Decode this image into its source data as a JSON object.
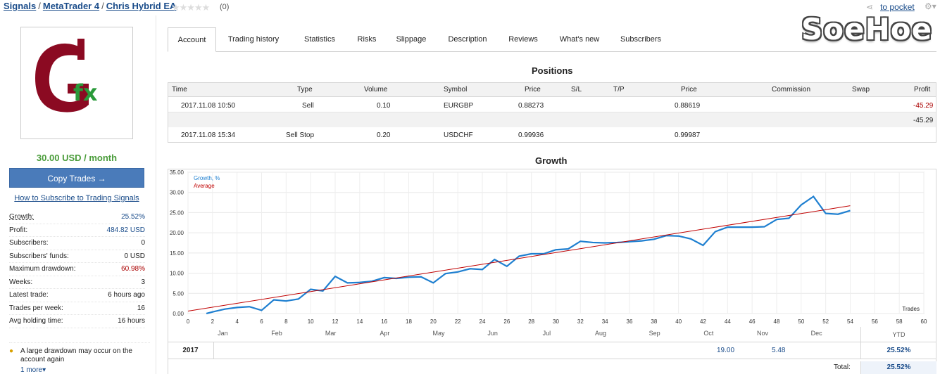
{
  "breadcrumb": {
    "items": [
      "Signals",
      "MetaTrader 4",
      "Chris Hybrid EA"
    ],
    "separator": "/"
  },
  "rating": {
    "stars": "★★★★★",
    "count": "(0)"
  },
  "header": {
    "pocket_label": "to pocket"
  },
  "watermark": "SoeHoe",
  "product": {
    "logo_text": "fx",
    "price": "30.00 USD / month",
    "copy_button": "Copy Trades →",
    "howto_link": "How to Subscribe to Trading Signals"
  },
  "stats": [
    {
      "label": "Growth:",
      "value": "25.52%"
    },
    {
      "label": "Profit:",
      "value": "484.82 USD"
    },
    {
      "label": "Subscribers:",
      "value": "0"
    },
    {
      "label": "Subscribers' funds:",
      "value": "0 USD"
    },
    {
      "label": "Maximum drawdown:",
      "value": "60.98%"
    },
    {
      "label": "Weeks:",
      "value": "3"
    },
    {
      "label": "Latest trade:",
      "value": "6 hours ago"
    },
    {
      "label": "Trades per week:",
      "value": "16"
    },
    {
      "label": "Avg holding time:",
      "value": "16 hours"
    }
  ],
  "warning": "A large drawdown may occur on the account again",
  "more_link": "1 more",
  "tabs": [
    "Account",
    "Trading history",
    "Statistics",
    "Risks",
    "Slippage",
    "Description",
    "Reviews",
    "What's new",
    "Subscribers"
  ],
  "positions": {
    "title": "Positions",
    "columns": [
      "Time",
      "Type",
      "Volume",
      "Symbol",
      "Price",
      "S/L",
      "T/P",
      "Price",
      "Commission",
      "Swap",
      "Profit"
    ],
    "rows": [
      {
        "time": "2017.11.08 10:50",
        "type": "Sell",
        "volume": "0.10",
        "symbol": "EURGBP",
        "price": "0.88273",
        "price2": "0.88619",
        "profit": "-45.29"
      },
      {
        "subtotal": "-45.29"
      },
      {
        "time": "2017.11.08 15:34",
        "type": "Sell Stop",
        "volume": "0.20",
        "symbol": "USDCHF",
        "price": "0.99936",
        "price2": "0.99987"
      }
    ]
  },
  "growth": {
    "title": "Growth",
    "months": [
      "Jan",
      "Feb",
      "Mar",
      "Apr",
      "May",
      "Jun",
      "Jul",
      "Aug",
      "Sep",
      "Oct",
      "Nov",
      "Dec"
    ],
    "ytd_label": "YTD",
    "year": "2017",
    "oct_value": "19.00",
    "nov_value": "5.48",
    "ytd_value": "25.52%",
    "total_label": "Total:",
    "total_value": "25.52%"
  },
  "chart_data": {
    "type": "line",
    "xlabel": "Trades",
    "ylabel": "",
    "xlim": [
      0,
      60
    ],
    "ylim": [
      0,
      35
    ],
    "x_ticks": [
      0,
      2,
      4,
      6,
      8,
      10,
      12,
      14,
      16,
      18,
      20,
      22,
      24,
      26,
      28,
      30,
      32,
      34,
      36,
      38,
      40,
      42,
      44,
      46,
      48,
      50,
      52,
      54,
      56,
      58,
      60
    ],
    "y_ticks": [
      "0.00",
      "5.00",
      "10.00",
      "15.00",
      "20.00",
      "25.00",
      "30.00",
      "35.00"
    ],
    "series": [
      {
        "name": "Growth, %",
        "color": "#1e7fd0",
        "x": [
          1.5,
          2,
          3,
          4,
          5,
          6,
          7,
          8,
          9,
          10,
          11,
          12,
          13,
          14,
          15,
          16,
          17,
          18,
          19,
          20,
          21,
          22,
          23,
          24,
          25,
          26,
          27,
          28,
          29,
          30,
          31,
          32,
          33,
          34,
          35,
          36,
          37,
          38,
          39,
          40,
          41,
          42,
          43,
          44,
          45,
          46,
          47,
          48,
          49,
          50,
          51,
          52,
          53,
          54
        ],
        "values": [
          0,
          0.4,
          1.1,
          1.5,
          1.7,
          0.8,
          3.4,
          3.1,
          3.6,
          6.0,
          5.6,
          9.2,
          7.6,
          7.7,
          8.0,
          8.9,
          8.7,
          9.0,
          9.1,
          7.6,
          9.9,
          10.3,
          11.1,
          10.9,
          13.4,
          11.7,
          14.2,
          14.8,
          14.8,
          15.8,
          16.0,
          17.9,
          17.6,
          17.5,
          17.6,
          17.8,
          18.0,
          18.4,
          19.3,
          19.2,
          18.5,
          16.9,
          20.3,
          21.4,
          21.4,
          21.4,
          21.5,
          23.3,
          23.6,
          26.9,
          29.0,
          24.8,
          24.6,
          25.5
        ]
      },
      {
        "name": "Average",
        "color": "#c00000",
        "x": [
          0,
          54
        ],
        "values": [
          0.6,
          26.7
        ]
      }
    ],
    "legend_position": "top-left",
    "grid": true
  }
}
